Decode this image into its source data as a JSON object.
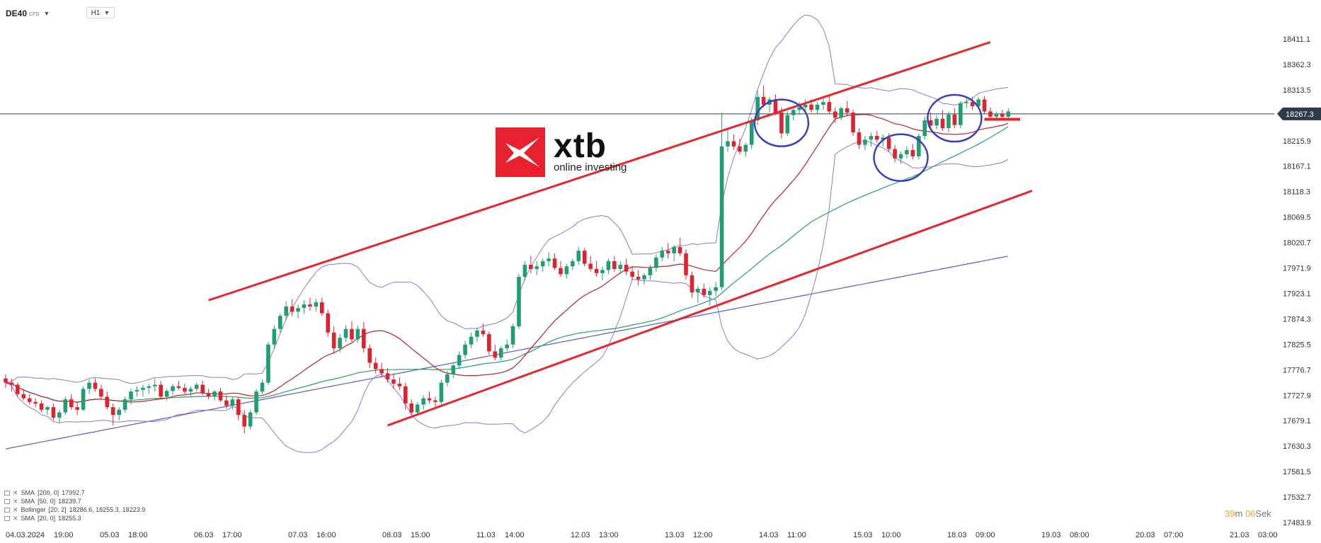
{
  "header": {
    "symbol": "DE40",
    "symbol_sub": "CFD",
    "timeframe": "H1"
  },
  "logo": {
    "name": "xtb",
    "tagline": "online investing",
    "color": "#e8212e"
  },
  "legend": [
    {
      "label": "SMA",
      "params": "[200, 0]",
      "values": "17992.7"
    },
    {
      "label": "SMA",
      "params": "[50, 0]",
      "values": "18239.7"
    },
    {
      "label": "Bollinger",
      "params": "[20, 2]",
      "values": "18286.6,   18255.3,   18223.9"
    },
    {
      "label": "SMA",
      "params": "[20, 0]",
      "values": "18255.3"
    }
  ],
  "timer": {
    "minutes": "39",
    "m_label": "m",
    "seconds": "06",
    "s_label": "Sek"
  },
  "chart_data": {
    "type": "candlestick",
    "timeframe": "H1",
    "current_price": 18267.3,
    "y_ticks": [
      18411.1,
      18362.3,
      18313.5,
      18215.9,
      18167.1,
      18118.3,
      18069.5,
      18020.7,
      17971.9,
      17923.1,
      17874.3,
      17825.5,
      17776.7,
      17727.9,
      17679.1,
      17630.3,
      17581.5,
      17532.7,
      17483.9
    ],
    "x_ticks": [
      "04.03.2024",
      "19:00",
      "05.03",
      "18:00",
      "06.03",
      "17:00",
      "07.03",
      "16:00",
      "08.03",
      "15:00",
      "11.03",
      "14:00",
      "12.03",
      "13:00",
      "13.03",
      "12:00",
      "14.03",
      "11:00",
      "15.03",
      "10:00",
      "18.03",
      "09:00",
      "19.03",
      "08:00",
      "20.03",
      "07:00",
      "21.03",
      "03:00"
    ],
    "ohlc_key": [
      "open",
      "high",
      "low",
      "close"
    ],
    "ohlc": [
      [
        17760,
        17768,
        17742,
        17752
      ],
      [
        17752,
        17760,
        17735,
        17748
      ],
      [
        17748,
        17752,
        17725,
        17730
      ],
      [
        17730,
        17740,
        17718,
        17722
      ],
      [
        17722,
        17730,
        17710,
        17715
      ],
      [
        17715,
        17722,
        17705,
        17712
      ],
      [
        17712,
        17718,
        17695,
        17700
      ],
      [
        17700,
        17708,
        17690,
        17705
      ],
      [
        17705,
        17712,
        17680,
        17685
      ],
      [
        17685,
        17700,
        17675,
        17695
      ],
      [
        17695,
        17725,
        17690,
        17720
      ],
      [
        17720,
        17730,
        17700,
        17705
      ],
      [
        17705,
        17715,
        17690,
        17700
      ],
      [
        17700,
        17745,
        17698,
        17740
      ],
      [
        17740,
        17758,
        17730,
        17752
      ],
      [
        17752,
        17760,
        17735,
        17740
      ],
      [
        17740,
        17748,
        17720,
        17725
      ],
      [
        17725,
        17735,
        17700,
        17705
      ],
      [
        17705,
        17712,
        17670,
        17690
      ],
      [
        17690,
        17705,
        17680,
        17700
      ],
      [
        17700,
        17725,
        17695,
        17720
      ],
      [
        17720,
        17740,
        17710,
        17735
      ],
      [
        17735,
        17745,
        17725,
        17738
      ],
      [
        17738,
        17748,
        17725,
        17742
      ],
      [
        17742,
        17750,
        17730,
        17745
      ],
      [
        17745,
        17760,
        17735,
        17748
      ],
      [
        17748,
        17755,
        17720,
        17725
      ],
      [
        17725,
        17740,
        17718,
        17736
      ],
      [
        17736,
        17750,
        17728,
        17745
      ],
      [
        17745,
        17755,
        17738,
        17742
      ],
      [
        17742,
        17750,
        17730,
        17735
      ],
      [
        17735,
        17745,
        17725,
        17740
      ],
      [
        17740,
        17752,
        17735,
        17748
      ],
      [
        17748,
        17756,
        17728,
        17732
      ],
      [
        17732,
        17740,
        17720,
        17726
      ],
      [
        17726,
        17738,
        17718,
        17735
      ],
      [
        17735,
        17742,
        17715,
        17718
      ],
      [
        17718,
        17728,
        17702,
        17708
      ],
      [
        17708,
        17725,
        17700,
        17720
      ],
      [
        17720,
        17725,
        17680,
        17690
      ],
      [
        17690,
        17700,
        17655,
        17668
      ],
      [
        17668,
        17700,
        17662,
        17695
      ],
      [
        17695,
        17740,
        17690,
        17735
      ],
      [
        17735,
        17758,
        17730,
        17752
      ],
      [
        17752,
        17830,
        17748,
        17825
      ],
      [
        17825,
        17862,
        17818,
        17855
      ],
      [
        17855,
        17885,
        17848,
        17880
      ],
      [
        17880,
        17908,
        17872,
        17898
      ],
      [
        17898,
        17912,
        17880,
        17888
      ],
      [
        17888,
        17902,
        17875,
        17895
      ],
      [
        17895,
        17910,
        17885,
        17902
      ],
      [
        17902,
        17915,
        17890,
        17898
      ],
      [
        17898,
        17912,
        17888,
        17906
      ],
      [
        17906,
        17915,
        17880,
        17885
      ],
      [
        17885,
        17892,
        17840,
        17848
      ],
      [
        17848,
        17860,
        17808,
        17818
      ],
      [
        17818,
        17845,
        17810,
        17838
      ],
      [
        17838,
        17862,
        17830,
        17855
      ],
      [
        17855,
        17870,
        17830,
        17835
      ],
      [
        17835,
        17862,
        17828,
        17855
      ],
      [
        17855,
        17868,
        17810,
        17818
      ],
      [
        17818,
        17825,
        17780,
        17790
      ],
      [
        17790,
        17800,
        17770,
        17778
      ],
      [
        17778,
        17790,
        17762,
        17770
      ],
      [
        17770,
        17780,
        17752,
        17758
      ],
      [
        17758,
        17770,
        17740,
        17750
      ],
      [
        17750,
        17762,
        17738,
        17745
      ],
      [
        17745,
        17752,
        17700,
        17712
      ],
      [
        17712,
        17720,
        17690,
        17695
      ],
      [
        17695,
        17715,
        17688,
        17710
      ],
      [
        17710,
        17728,
        17700,
        17722
      ],
      [
        17722,
        17735,
        17712,
        17718
      ],
      [
        17718,
        17725,
        17705,
        17715
      ],
      [
        17715,
        17758,
        17710,
        17752
      ],
      [
        17752,
        17775,
        17745,
        17768
      ],
      [
        17768,
        17790,
        17760,
        17785
      ],
      [
        17785,
        17812,
        17778,
        17805
      ],
      [
        17805,
        17832,
        17798,
        17825
      ],
      [
        17825,
        17848,
        17818,
        17840
      ],
      [
        17840,
        17858,
        17830,
        17852
      ],
      [
        17852,
        17865,
        17840,
        17845
      ],
      [
        17845,
        17850,
        17805,
        17812
      ],
      [
        17812,
        17825,
        17795,
        17800
      ],
      [
        17800,
        17822,
        17795,
        17818
      ],
      [
        17818,
        17835,
        17812,
        17825
      ],
      [
        17825,
        17865,
        17818,
        17860
      ],
      [
        17860,
        17960,
        17855,
        17955
      ],
      [
        17955,
        17985,
        17948,
        17978
      ],
      [
        17978,
        17995,
        17962,
        17970
      ],
      [
        17970,
        17985,
        17958,
        17975
      ],
      [
        17975,
        17990,
        17965,
        17985
      ],
      [
        17985,
        18002,
        17975,
        17990
      ],
      [
        17990,
        18000,
        17968,
        17972
      ],
      [
        17972,
        17985,
        17955,
        17960
      ],
      [
        17960,
        17980,
        17952,
        17975
      ],
      [
        17975,
        17990,
        17968,
        17985
      ],
      [
        17985,
        18012,
        17978,
        18005
      ],
      [
        18005,
        18010,
        17975,
        17980
      ],
      [
        17980,
        17995,
        17965,
        17970
      ],
      [
        17970,
        17985,
        17955,
        17962
      ],
      [
        17962,
        17975,
        17948,
        17968
      ],
      [
        17968,
        17990,
        17960,
        17985
      ],
      [
        17985,
        17995,
        17965,
        17970
      ],
      [
        17970,
        17985,
        17960,
        17978
      ],
      [
        17978,
        17990,
        17958,
        17965
      ],
      [
        17965,
        17975,
        17948,
        17955
      ],
      [
        17955,
        17968,
        17938,
        17950
      ],
      [
        17950,
        17962,
        17940,
        17958
      ],
      [
        17958,
        17978,
        17950,
        17972
      ],
      [
        17972,
        17998,
        17965,
        17992
      ],
      [
        17992,
        18012,
        17985,
        18005
      ],
      [
        18005,
        18020,
        17990,
        18000
      ],
      [
        18000,
        18015,
        17985,
        18012
      ],
      [
        18012,
        18030,
        17995,
        18000
      ],
      [
        18000,
        18008,
        17950,
        17958
      ],
      [
        17958,
        17965,
        17915,
        17925
      ],
      [
        17925,
        17938,
        17905,
        17932
      ],
      [
        17932,
        17942,
        17915,
        17920
      ],
      [
        17920,
        17935,
        17900,
        17928
      ],
      [
        17928,
        17945,
        17918,
        17935
      ],
      [
        17935,
        18270,
        17930,
        18205
      ],
      [
        18205,
        18240,
        18195,
        18215
      ],
      [
        18215,
        18228,
        18198,
        18205
      ],
      [
        18205,
        18220,
        18190,
        18195
      ],
      [
        18195,
        18212,
        18185,
        18208
      ],
      [
        18208,
        18260,
        18200,
        18255
      ],
      [
        18255,
        18312,
        18245,
        18300
      ],
      [
        18300,
        18322,
        18280,
        18285
      ],
      [
        18285,
        18300,
        18270,
        18295
      ],
      [
        18295,
        18305,
        18265,
        18270
      ],
      [
        18270,
        18280,
        18220,
        18230
      ],
      [
        18230,
        18272,
        18225,
        18265
      ],
      [
        18265,
        18282,
        18255,
        18275
      ],
      [
        18275,
        18290,
        18265,
        18280
      ],
      [
        18280,
        18295,
        18270,
        18285
      ],
      [
        18285,
        18295,
        18270,
        18275
      ],
      [
        18275,
        18290,
        18268,
        18285
      ],
      [
        18285,
        18298,
        18275,
        18290
      ],
      [
        18290,
        18302,
        18268,
        18272
      ],
      [
        18272,
        18280,
        18250,
        18260
      ],
      [
        18260,
        18282,
        18255,
        18278
      ],
      [
        18278,
        18292,
        18265,
        18270
      ],
      [
        18270,
        18275,
        18225,
        18232
      ],
      [
        18232,
        18240,
        18200,
        18208
      ],
      [
        18208,
        18225,
        18198,
        18218
      ],
      [
        18218,
        18232,
        18205,
        18225
      ],
      [
        18225,
        18235,
        18212,
        18218
      ],
      [
        18218,
        18228,
        18205,
        18222
      ],
      [
        18222,
        18230,
        18195,
        18200
      ],
      [
        18200,
        18208,
        18175,
        18182
      ],
      [
        18182,
        18195,
        18172,
        18190
      ],
      [
        18190,
        18205,
        18182,
        18198
      ],
      [
        18198,
        18210,
        18180,
        18186
      ],
      [
        18186,
        18230,
        18180,
        18225
      ],
      [
        18225,
        18262,
        18218,
        18255
      ],
      [
        18255,
        18270,
        18240,
        18245
      ],
      [
        18245,
        18265,
        18238,
        18258
      ],
      [
        18258,
        18275,
        18235,
        18240
      ],
      [
        18240,
        18272,
        18232,
        18266
      ],
      [
        18266,
        18278,
        18240,
        18246
      ],
      [
        18246,
        18292,
        18240,
        18288
      ],
      [
        18288,
        18298,
        18278,
        18290
      ],
      [
        18290,
        18300,
        18275,
        18282
      ],
      [
        18282,
        18300,
        18278,
        18295
      ],
      [
        18295,
        18302,
        18268,
        18272
      ],
      [
        18272,
        18280,
        18258,
        18262
      ],
      [
        18262,
        18272,
        18255,
        18268
      ],
      [
        18268,
        18275,
        18256,
        18262
      ],
      [
        18262,
        18278,
        18258,
        18272
      ]
    ],
    "indicators": [
      {
        "name": "SMA [200, 0]",
        "color": "#5a5fbf",
        "last": 17992.7
      },
      {
        "name": "SMA [50, 0]",
        "color": "#2a9d66",
        "last": 18239.7
      },
      {
        "name": "Bollinger [20, 2]",
        "color": "#8a7ad0",
        "upper": 18286.6,
        "middle": 18255.3,
        "lower": 18223.9
      },
      {
        "name": "SMA [20, 0]",
        "color": "#b3232d",
        "last": 18255.3
      }
    ],
    "annotations": {
      "channel_upper": [
        [
          34,
          17910
        ],
        [
          165,
          18405
        ]
      ],
      "channel_lower": [
        [
          64,
          17670
        ],
        [
          172,
          18120
        ]
      ],
      "level_line": {
        "price": 18257,
        "from": 164,
        "to": 170
      },
      "circles": [
        130,
        150,
        159
      ],
      "colors": {
        "channel": "#e5262f",
        "circle": "#3a3fbf",
        "current_line": "#2e3e4e",
        "up": "#1f9e6f",
        "down": "#dd2230"
      }
    }
  }
}
